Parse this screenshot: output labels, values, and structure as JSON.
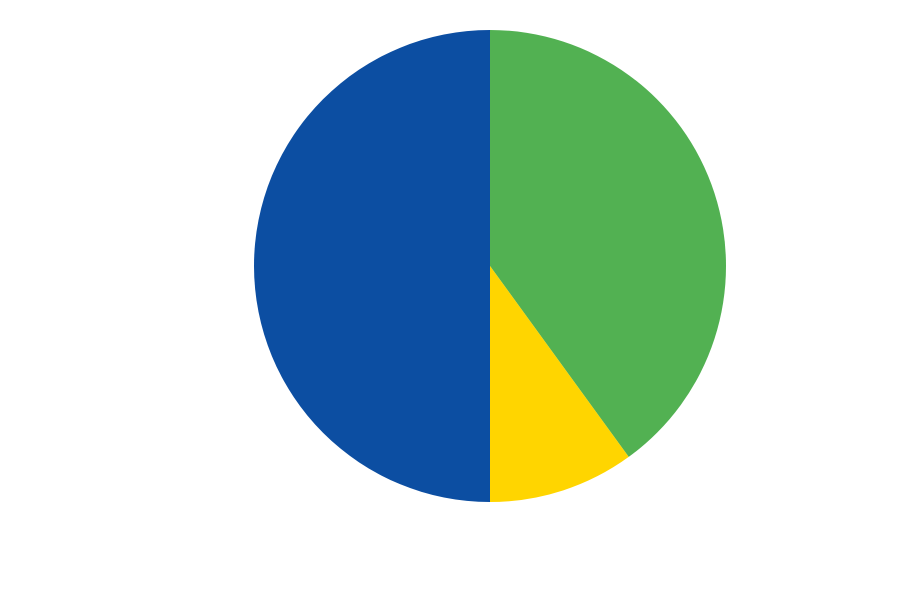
{
  "chart_data": {
    "type": "pie",
    "categories": [
      "",
      "",
      ""
    ],
    "values": [
      40,
      10,
      50
    ],
    "colors": [
      "#52b152",
      "#ffd500",
      "#0c4ea2"
    ],
    "title": "",
    "start_angle_deg": 0,
    "direction": "clockwise",
    "legend": "none"
  }
}
